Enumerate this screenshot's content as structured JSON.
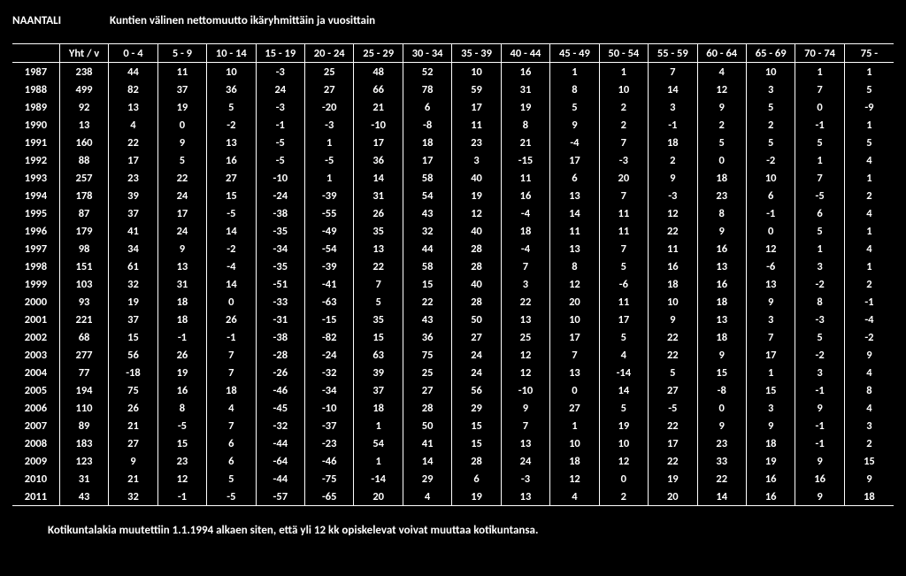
{
  "document_title": "NAANTALI",
  "document_subtitle": "Kuntien välinen nettomuutto ikäryhmittäin ja vuosittain",
  "footnote": "Kotikuntalakia muutettiin 1.1.1994 alkaen siten, että yli 12 kk opiskelevat voivat muuttaa kotikuntansa.",
  "columns": [
    "",
    "Yht / v",
    "0 - 4",
    "5 - 9",
    "10 - 14",
    "15 - 19",
    "20 - 24",
    "25 - 29",
    "30 - 34",
    "35 - 39",
    "40 - 44",
    "45 - 49",
    "50 - 54",
    "55 - 59",
    "60 - 64",
    "65 - 69",
    "70 - 74",
    "75 -"
  ],
  "rows": [
    [
      "1987",
      "238",
      "44",
      "11",
      "10",
      "-3",
      "25",
      "48",
      "52",
      "10",
      "16",
      "1",
      "1",
      "7",
      "4",
      "10",
      "1",
      "1"
    ],
    [
      "1988",
      "499",
      "82",
      "37",
      "36",
      "24",
      "27",
      "66",
      "78",
      "59",
      "31",
      "8",
      "10",
      "14",
      "12",
      "3",
      "7",
      "5"
    ],
    [
      "1989",
      "92",
      "13",
      "19",
      "5",
      "-3",
      "-20",
      "21",
      "6",
      "17",
      "19",
      "5",
      "2",
      "3",
      "9",
      "5",
      "0",
      "-9"
    ],
    [
      "1990",
      "13",
      "4",
      "0",
      "-2",
      "-1",
      "-3",
      "-10",
      "-8",
      "11",
      "8",
      "9",
      "2",
      "-1",
      "2",
      "2",
      "-1",
      "1"
    ],
    [
      "1991",
      "160",
      "22",
      "9",
      "13",
      "-5",
      "1",
      "17",
      "18",
      "23",
      "21",
      "-4",
      "7",
      "18",
      "5",
      "5",
      "5",
      "5"
    ],
    [
      "1992",
      "88",
      "17",
      "5",
      "16",
      "-5",
      "-5",
      "36",
      "17",
      "3",
      "-15",
      "17",
      "-3",
      "2",
      "0",
      "-2",
      "1",
      "4"
    ],
    [
      "1993",
      "257",
      "23",
      "22",
      "27",
      "-10",
      "1",
      "14",
      "58",
      "40",
      "11",
      "6",
      "20",
      "9",
      "18",
      "10",
      "7",
      "1"
    ],
    [
      "1994",
      "178",
      "39",
      "24",
      "15",
      "-24",
      "-39",
      "31",
      "54",
      "19",
      "16",
      "13",
      "7",
      "-3",
      "23",
      "6",
      "-5",
      "2"
    ],
    [
      "1995",
      "87",
      "37",
      "17",
      "-5",
      "-38",
      "-55",
      "26",
      "43",
      "12",
      "-4",
      "14",
      "11",
      "12",
      "8",
      "-1",
      "6",
      "4"
    ],
    [
      "1996",
      "179",
      "41",
      "24",
      "14",
      "-35",
      "-49",
      "35",
      "32",
      "40",
      "18",
      "11",
      "11",
      "22",
      "9",
      "0",
      "5",
      "1"
    ],
    [
      "1997",
      "98",
      "34",
      "9",
      "-2",
      "-34",
      "-54",
      "13",
      "44",
      "28",
      "-4",
      "13",
      "7",
      "11",
      "16",
      "12",
      "1",
      "4"
    ],
    [
      "1998",
      "151",
      "61",
      "13",
      "-4",
      "-35",
      "-39",
      "22",
      "58",
      "28",
      "7",
      "8",
      "5",
      "16",
      "13",
      "-6",
      "3",
      "1"
    ],
    [
      "1999",
      "103",
      "32",
      "31",
      "14",
      "-51",
      "-41",
      "7",
      "15",
      "40",
      "3",
      "12",
      "-6",
      "18",
      "16",
      "13",
      "-2",
      "2"
    ],
    [
      "2000",
      "93",
      "19",
      "18",
      "0",
      "-33",
      "-63",
      "5",
      "22",
      "28",
      "22",
      "20",
      "11",
      "10",
      "18",
      "9",
      "8",
      "-1"
    ],
    [
      "2001",
      "221",
      "37",
      "18",
      "26",
      "-31",
      "-15",
      "35",
      "43",
      "50",
      "13",
      "10",
      "17",
      "9",
      "13",
      "3",
      "-3",
      "-4"
    ],
    [
      "2002",
      "68",
      "15",
      "-1",
      "-1",
      "-38",
      "-82",
      "15",
      "36",
      "27",
      "25",
      "17",
      "5",
      "22",
      "18",
      "7",
      "5",
      "-2"
    ],
    [
      "2003",
      "277",
      "56",
      "26",
      "7",
      "-28",
      "-24",
      "63",
      "75",
      "24",
      "12",
      "7",
      "4",
      "22",
      "9",
      "17",
      "-2",
      "9"
    ],
    [
      "2004",
      "77",
      "-18",
      "19",
      "7",
      "-26",
      "-32",
      "39",
      "25",
      "24",
      "12",
      "13",
      "-14",
      "5",
      "15",
      "1",
      "3",
      "4"
    ],
    [
      "2005",
      "194",
      "75",
      "16",
      "18",
      "-46",
      "-34",
      "37",
      "27",
      "56",
      "-10",
      "0",
      "14",
      "27",
      "-8",
      "15",
      "-1",
      "8"
    ],
    [
      "2006",
      "110",
      "26",
      "8",
      "4",
      "-45",
      "-10",
      "18",
      "28",
      "29",
      "9",
      "27",
      "5",
      "-5",
      "0",
      "3",
      "9",
      "4"
    ],
    [
      "2007",
      "89",
      "21",
      "-5",
      "7",
      "-32",
      "-37",
      "1",
      "50",
      "15",
      "7",
      "1",
      "19",
      "22",
      "9",
      "9",
      "-1",
      "3"
    ],
    [
      "2008",
      "183",
      "27",
      "15",
      "6",
      "-44",
      "-23",
      "54",
      "41",
      "15",
      "13",
      "10",
      "10",
      "17",
      "23",
      "18",
      "-1",
      "2"
    ],
    [
      "2009",
      "123",
      "9",
      "23",
      "6",
      "-64",
      "-46",
      "1",
      "14",
      "28",
      "24",
      "18",
      "12",
      "22",
      "33",
      "19",
      "9",
      "15"
    ],
    [
      "2010",
      "31",
      "21",
      "12",
      "5",
      "-44",
      "-75",
      "-14",
      "29",
      "6",
      "-3",
      "12",
      "0",
      "19",
      "22",
      "16",
      "16",
      "9"
    ],
    [
      "2011",
      "43",
      "32",
      "-1",
      "-5",
      "-57",
      "-65",
      "20",
      "4",
      "19",
      "13",
      "4",
      "2",
      "20",
      "14",
      "16",
      "9",
      "18"
    ]
  ],
  "text_color": "#ffffff",
  "background_color": "#000000",
  "border_color": "#ffffff",
  "font_family": "Calibri, Arial, sans-serif",
  "cell_font_size": 12.5,
  "cell_font_weight": "bold"
}
